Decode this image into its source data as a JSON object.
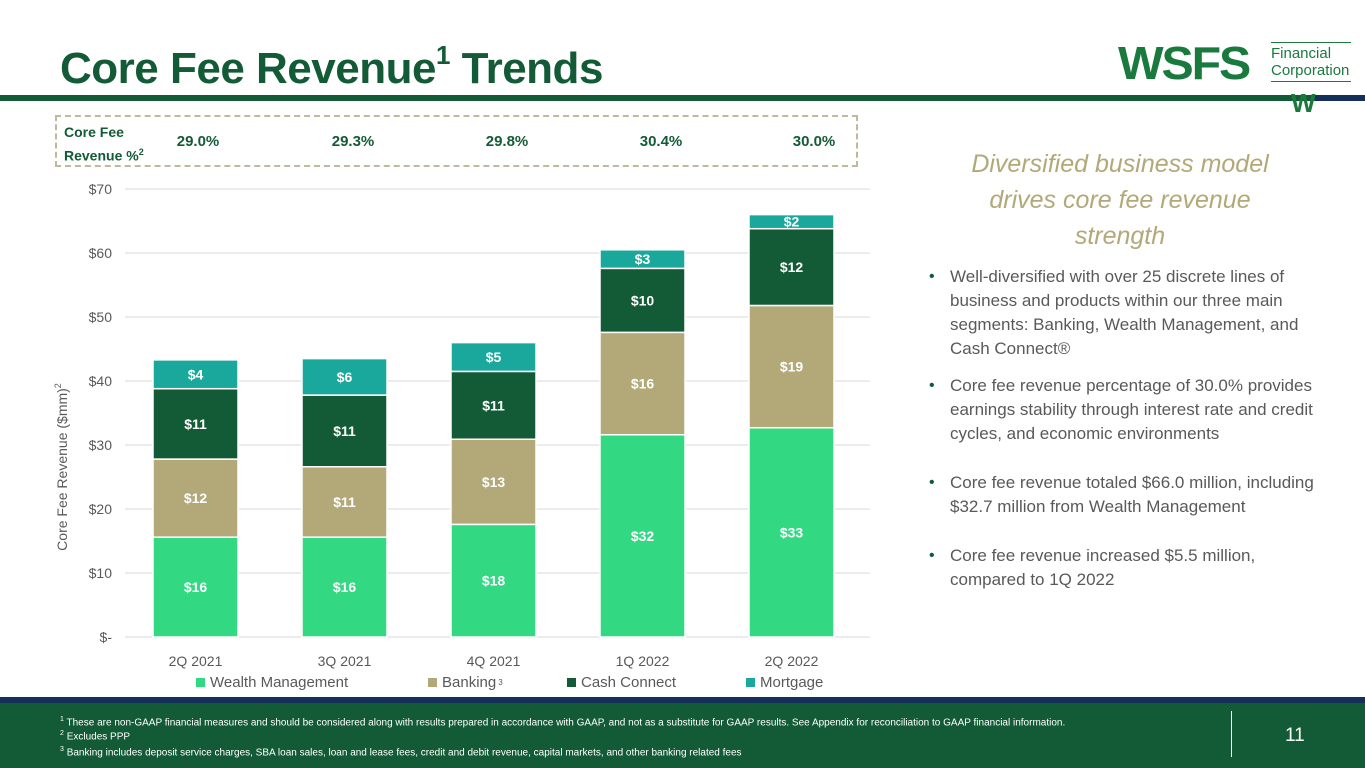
{
  "header": {
    "title": "Core Fee Revenue",
    "title_sup": "1",
    "title_suffix": "Trends"
  },
  "logo": {
    "name": "WSFS",
    "sub_line1": "Financial",
    "sub_line2": "Corporation",
    "mark": "W"
  },
  "pct_row": {
    "label_line1": "Core Fee",
    "label_line2": "Revenue %",
    "label_sup": "2",
    "values": [
      "29.0%",
      "29.3%",
      "29.8%",
      "30.4%",
      "30.0%"
    ]
  },
  "chart_data": {
    "type": "bar",
    "stacked": true,
    "title": "",
    "xlabel": "",
    "ylabel": "Core Fee Revenue ($mm)",
    "ylabel_sup": "2",
    "categories": [
      "2Q 2021",
      "3Q 2021",
      "4Q 2021",
      "1Q 2022",
      "2Q 2022"
    ],
    "ylim": [
      0,
      70
    ],
    "yticks": [
      0,
      10,
      20,
      30,
      40,
      50,
      60,
      70
    ],
    "ytick_labels": [
      "$-",
      "$10",
      "$20",
      "$30",
      "$40",
      "$50",
      "$60",
      "$70"
    ],
    "grid": true,
    "legend_position": "bottom",
    "series": [
      {
        "name": "Wealth Management",
        "color": "#33d882",
        "values": [
          15.6,
          15.6,
          17.6,
          31.6,
          32.7
        ],
        "labels": [
          "$16",
          "$16",
          "$18",
          "$32",
          "$33"
        ]
      },
      {
        "name": "Banking",
        "name_sup": "3",
        "color": "#b2a878",
        "values": [
          12.2,
          11.0,
          13.3,
          16.0,
          19.1
        ],
        "labels": [
          "$12",
          "$11",
          "$13",
          "$16",
          "$19"
        ]
      },
      {
        "name": "Cash Connect",
        "color": "#135b36",
        "values": [
          11.0,
          11.2,
          10.6,
          10.0,
          12.0
        ],
        "labels": [
          "$11",
          "$11",
          "$11",
          "$10",
          "$12"
        ]
      },
      {
        "name": "Mortgage",
        "color": "#1aa89c",
        "values": [
          4.5,
          5.7,
          4.5,
          2.9,
          2.2
        ],
        "labels": [
          "$4",
          "$6",
          "$5",
          "$3",
          "$2"
        ]
      }
    ]
  },
  "sidebar": {
    "tagline": "Diversified business model drives core fee revenue strength",
    "bullets": [
      "Well-diversified with over 25 discrete lines of business and products within our three main segments: Banking, Wealth Management, and Cash Connect®",
      "Core fee revenue percentage of 30.0% provides earnings stability through interest rate and credit cycles, and economic environments",
      "Core fee revenue totaled $66.0 million, including $32.7 million from Wealth Management",
      "Core fee revenue increased $5.5 million, compared to 1Q 2022"
    ]
  },
  "footer": {
    "notes": [
      {
        "sup": "1",
        "text": "These are non-GAAP financial measures and should be considered along with results prepared in accordance with GAAP, and not as a substitute for GAAP results.  See Appendix for reconciliation to GAAP financial information."
      },
      {
        "sup": "2",
        "text": "Excludes PPP"
      },
      {
        "sup": "3",
        "text": "Banking includes deposit service charges, SBA loan sales, loan and lease fees, credit and debit revenue, capital markets, and other banking related fees"
      }
    ],
    "page_number": "11"
  }
}
